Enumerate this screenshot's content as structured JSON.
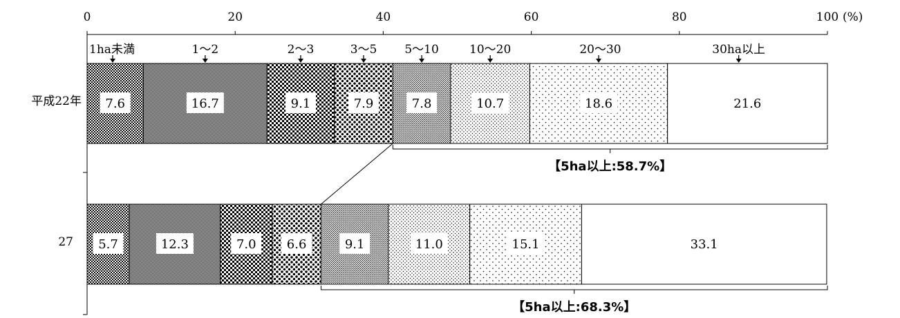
{
  "chart_data": {
    "type": "bar",
    "orientation": "horizontal",
    "stacked": true,
    "unit": "(%)",
    "xlim": [
      0,
      100
    ],
    "xticks": [
      0,
      20,
      40,
      60,
      80,
      100
    ],
    "xtick_labels": [
      "0",
      "20",
      "40",
      "60",
      "80",
      "100"
    ],
    "categories": [
      "平成22年",
      "27"
    ],
    "segment_labels": [
      "1ha未満",
      "1〜2",
      "2〜3",
      "3〜5",
      "5〜10",
      "10〜20",
      "20〜30",
      "30ha以上"
    ],
    "series": [
      {
        "name": "1ha未満",
        "values": [
          7.6,
          5.7
        ]
      },
      {
        "name": "1〜2",
        "values": [
          16.7,
          12.3
        ]
      },
      {
        "name": "2〜3",
        "values": [
          9.1,
          7.0
        ]
      },
      {
        "name": "3〜5",
        "values": [
          7.9,
          6.6
        ]
      },
      {
        "name": "5〜10",
        "values": [
          7.8,
          9.1
        ]
      },
      {
        "name": "10〜20",
        "values": [
          10.7,
          11.0
        ]
      },
      {
        "name": "20〜30",
        "values": [
          18.6,
          15.1
        ]
      },
      {
        "name": "30ha以上",
        "values": [
          21.6,
          33.1
        ]
      }
    ],
    "brackets": [
      "【5ha以上:58.7%】",
      "【5ha以上:68.3%】"
    ],
    "grid": false,
    "legend": "labels above top bar with arrows"
  }
}
